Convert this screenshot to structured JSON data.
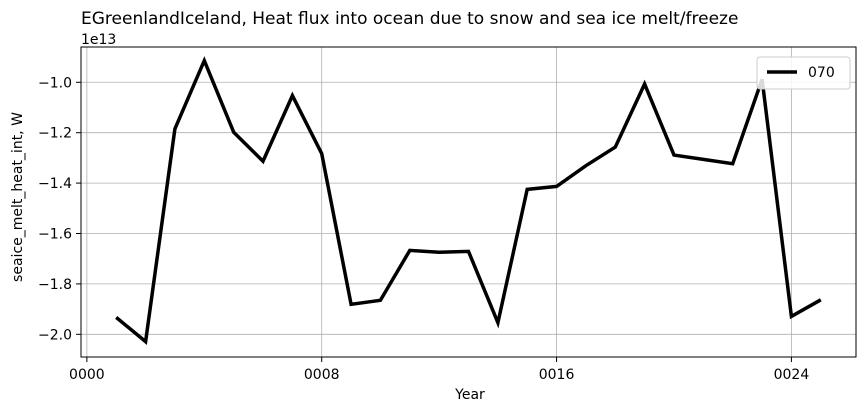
{
  "chart_data": {
    "type": "line",
    "title": "EGreenlandIceland, Heat flux into ocean due to snow and sea ice melt/freeze",
    "xlabel": "Year",
    "ylabel": "seaice_melt_heat_int, W",
    "y_offset_label": "1e13",
    "xlim": [
      -0.2,
      26.2
    ],
    "ylim": [
      -2.09,
      -0.86
    ],
    "x_ticks": [
      0,
      8,
      16,
      24
    ],
    "x_tick_labels": [
      "0000",
      "0008",
      "0016",
      "0024"
    ],
    "y_ticks": [
      -2.0,
      -1.8,
      -1.6,
      -1.4,
      -1.2,
      -1.0
    ],
    "y_tick_labels": [
      "−2.0",
      "−1.8",
      "−1.6",
      "−1.4",
      "−1.2",
      "−1.0"
    ],
    "grid": true,
    "legend_position": "top-right",
    "series": [
      {
        "name": "070",
        "color": "#000000",
        "x": [
          1,
          2,
          3,
          4,
          5,
          6,
          7,
          8,
          9,
          10,
          11,
          12,
          13,
          14,
          15,
          16,
          17,
          18,
          19,
          20,
          21,
          22,
          23,
          24,
          25
        ],
        "y": [
          -1.933,
          -2.029,
          -1.185,
          -0.914,
          -1.198,
          -1.313,
          -1.053,
          -1.283,
          -1.881,
          -1.865,
          -1.667,
          -1.674,
          -1.671,
          -1.954,
          -1.425,
          -1.413,
          -1.331,
          -1.257,
          -1.007,
          -1.289,
          -1.306,
          -1.323,
          -0.988,
          -1.929,
          -1.863
        ]
      }
    ]
  }
}
